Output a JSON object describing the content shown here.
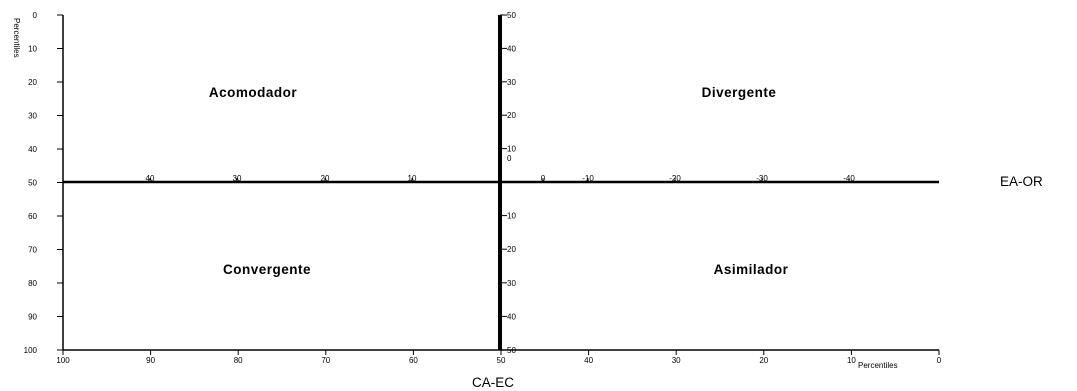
{
  "chart_data": {
    "type": "quadrant",
    "left_axis": {
      "label": "Percentiles",
      "ticks": [
        0,
        10,
        20,
        30,
        40,
        50,
        60,
        70,
        80,
        90,
        100
      ]
    },
    "bottom_axis": {
      "label": "Percentiles",
      "ticks": [
        100,
        90,
        80,
        70,
        60,
        50,
        40,
        30,
        20,
        10,
        0
      ]
    },
    "center_vertical_axis": {
      "upper_ticks": [
        "50",
        "40",
        "30",
        "20",
        "10",
        "0"
      ],
      "lower_ticks": [
        "10",
        "20",
        "30",
        "40",
        "50"
      ]
    },
    "center_horizontal_axis": {
      "left_ticks": [
        "40",
        "30",
        "20",
        "10"
      ],
      "right_ticks": [
        "0",
        "-10",
        "-20",
        "-30",
        "-40"
      ]
    },
    "horizontal_axis_name": "EA-OR",
    "vertical_axis_name": "CA-EC",
    "quadrants": {
      "top_left": "Acomodador",
      "top_right": "Divergente",
      "bottom_left": "Convergente",
      "bottom_right": "Asimilador"
    }
  }
}
